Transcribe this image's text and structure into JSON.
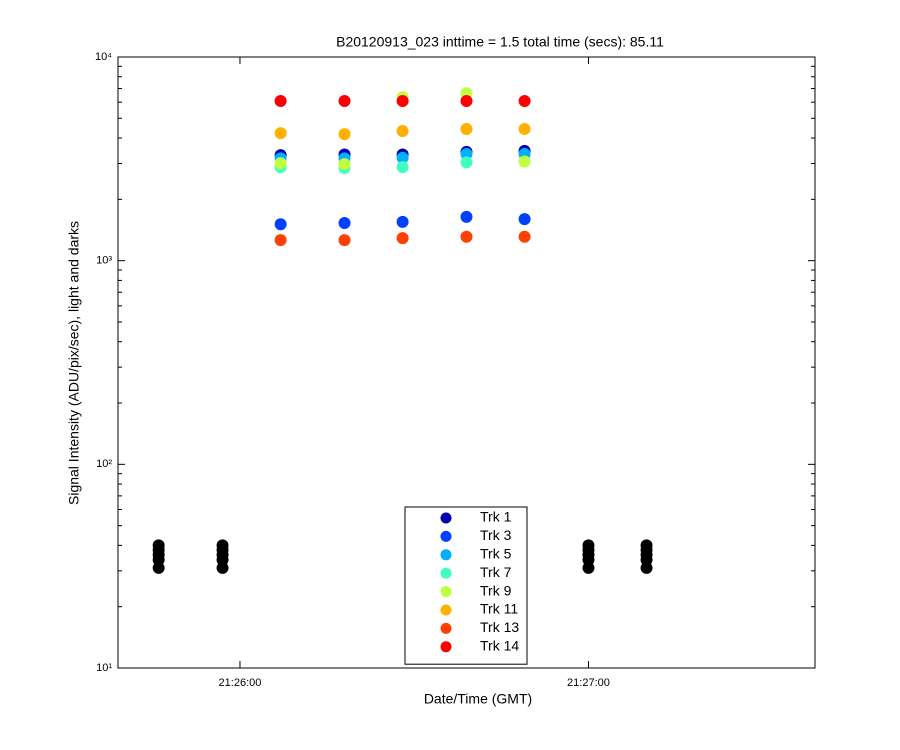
{
  "chart_data": {
    "type": "scatter",
    "title": "B20120913_023 inttime = 1.5 total time (secs): 85.11",
    "xlabel": "Date/Time (GMT)",
    "ylabel": "Signal Intensity (ADU/pix/sec), light and darks",
    "log_y": true,
    "grid": false,
    "legend": "bottom",
    "xlim": [
      "21:25:39",
      "21:27:39"
    ],
    "xticks": [
      "21:26:00",
      "21:27:00"
    ],
    "ylim": [
      10,
      10000
    ],
    "yticks": [
      {
        "value": 10,
        "label": "10¹"
      },
      {
        "value": 100,
        "label": "10²"
      },
      {
        "value": 1000,
        "label": "10³"
      },
      {
        "value": 10000,
        "label": "10⁴"
      }
    ],
    "series": [
      {
        "name": "Trk 1",
        "color": "#0000b0",
        "x": [
          "21:26:07",
          "21:26:18",
          "21:26:28",
          "21:26:39",
          "21:26:49"
        ],
        "values": [
          3300,
          3320,
          3320,
          3420,
          3460
        ]
      },
      {
        "name": "Trk 3",
        "color": "#0040ff",
        "x": [
          "21:26:07",
          "21:26:18",
          "21:26:28",
          "21:26:39",
          "21:26:49"
        ],
        "values": [
          1510,
          1530,
          1550,
          1640,
          1600
        ]
      },
      {
        "name": "Trk 5",
        "color": "#00b0ff",
        "x": [
          "21:26:07",
          "21:26:18",
          "21:26:28",
          "21:26:39",
          "21:26:49"
        ],
        "values": [
          3180,
          3180,
          3200,
          3340,
          3340
        ]
      },
      {
        "name": "Trk 7",
        "color": "#40ffc0",
        "x": [
          "21:26:07",
          "21:26:18",
          "21:26:28",
          "21:26:39",
          "21:26:49"
        ],
        "values": [
          2880,
          2850,
          2880,
          3040,
          3070
        ]
      },
      {
        "name": "Trk 9",
        "color": "#c0ff40",
        "x": [
          "21:26:07",
          "21:26:18",
          "21:26:28",
          "21:26:39",
          "21:26:49"
        ],
        "values": [
          3010,
          2980,
          6350,
          6650,
          3070
        ]
      },
      {
        "name": "Trk 11",
        "color": "#ffb000",
        "x": [
          "21:26:07",
          "21:26:18",
          "21:26:28",
          "21:26:39",
          "21:26:49"
        ],
        "values": [
          4230,
          4180,
          4330,
          4430,
          4430
        ]
      },
      {
        "name": "Trk 13",
        "color": "#ff4000",
        "x": [
          "21:26:07",
          "21:26:18",
          "21:26:28",
          "21:26:39",
          "21:26:49"
        ],
        "values": [
          1262,
          1262,
          1290,
          1310,
          1310
        ]
      },
      {
        "name": "Trk 14",
        "color": "#ff0000",
        "x": [
          "21:26:07",
          "21:26:18",
          "21:26:28",
          "21:26:39",
          "21:26:49"
        ],
        "values": [
          6080,
          6080,
          6080,
          6080,
          6080
        ]
      },
      {
        "color": "#000000",
        "x": [
          "21:25:46",
          "21:25:46",
          "21:25:46",
          "21:25:46",
          "21:25:46",
          "21:25:57",
          "21:25:57",
          "21:25:57",
          "21:25:57",
          "21:25:57",
          "21:27:00",
          "21:27:00",
          "21:27:00",
          "21:27:00",
          "21:27:00",
          "21:27:10",
          "21:27:10",
          "21:27:10",
          "21:27:10",
          "21:27:10"
        ],
        "values": [
          40,
          38,
          36,
          34,
          31,
          40,
          38,
          36,
          34,
          31,
          40,
          38,
          36,
          34,
          31,
          40,
          38,
          36,
          34,
          31
        ]
      }
    ]
  }
}
